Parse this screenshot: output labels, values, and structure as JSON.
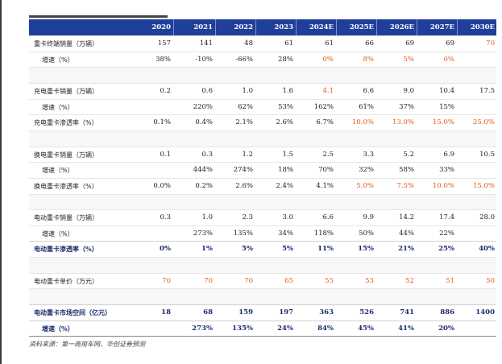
{
  "table": {
    "headers": [
      "",
      "2020",
      "2021",
      "2022",
      "2023",
      "2024E",
      "2025E",
      "2026E",
      "2027E",
      "2030E"
    ],
    "rows": [
      {
        "label": "重卡终端销量（万辆）",
        "values": [
          "157",
          "141",
          "48",
          "61",
          "61",
          "66",
          "69",
          "69",
          "70"
        ],
        "orange": [
          8
        ]
      },
      {
        "label": "增速（%）",
        "values": [
          "38%",
          "-10%",
          "-66%",
          "28%",
          "0%",
          "8%",
          "5%",
          "0%",
          ""
        ],
        "orange": [
          4,
          5,
          6,
          7
        ],
        "indent": true
      },
      {
        "blank": true
      },
      {
        "label": "充电重卡销量（万辆）",
        "values": [
          "0.2",
          "0.6",
          "1.0",
          "1.6",
          "4.1",
          "6.6",
          "9.0",
          "10.4",
          "17.5"
        ],
        "orange": [
          4
        ]
      },
      {
        "label": "增速（%）",
        "values": [
          "",
          "220%",
          "62%",
          "53%",
          "162%",
          "61%",
          "37%",
          "15%",
          ""
        ],
        "orange": [],
        "indent": true
      },
      {
        "label": "充电重卡渗透率（%）",
        "values": [
          "0.1%",
          "0.4%",
          "2.1%",
          "2.6%",
          "6.7%",
          "10.0%",
          "13.0%",
          "15.0%",
          "25.0%"
        ],
        "orange": [
          5,
          6,
          7,
          8
        ]
      },
      {
        "blank": true
      },
      {
        "label": "换电重卡销量（万辆）",
        "values": [
          "0.1",
          "0.3",
          "1.2",
          "1.5",
          "2.5",
          "3.3",
          "5.2",
          "6.9",
          "10.5"
        ],
        "orange": []
      },
      {
        "label": "增速（%）",
        "values": [
          "",
          "444%",
          "274%",
          "18%",
          "70%",
          "32%",
          "58%",
          "33%",
          ""
        ],
        "orange": [],
        "indent": true
      },
      {
        "label": "换电重卡渗透率（%）",
        "values": [
          "0.0%",
          "0.2%",
          "2.6%",
          "2.4%",
          "4.1%",
          "5.0%",
          "7.5%",
          "10.0%",
          "15.0%"
        ],
        "orange": [
          5,
          6,
          7,
          8
        ]
      },
      {
        "blank": true
      },
      {
        "label": "电动重卡销量（万辆）",
        "values": [
          "0.3",
          "1.0",
          "2.3",
          "3.0",
          "6.6",
          "9.9",
          "14.2",
          "17.4",
          "28.0"
        ],
        "orange": []
      },
      {
        "label": "增速（%）",
        "values": [
          "",
          "273%",
          "135%",
          "34%",
          "118%",
          "50%",
          "44%",
          "22%",
          ""
        ],
        "orange": [],
        "indent": true
      },
      {
        "label": "电动重卡渗透率（%）",
        "values": [
          "0%",
          "1%",
          "5%",
          "5%",
          "11%",
          "15%",
          "21%",
          "25%",
          "40%"
        ],
        "orange": [],
        "bold": true
      },
      {
        "blank": true
      },
      {
        "label": "电动重卡单价（万元）",
        "values": [
          "70",
          "70",
          "70",
          "65",
          "55",
          "53",
          "52",
          "51",
          "50"
        ],
        "orange": [
          0,
          1,
          2,
          3,
          4,
          5,
          6,
          7,
          8
        ]
      },
      {
        "blank": true
      },
      {
        "label": "电动重卡市场空间（亿元）",
        "values": [
          "18",
          "68",
          "159",
          "197",
          "363",
          "526",
          "741",
          "886",
          "1400"
        ],
        "orange": [],
        "bold": true
      },
      {
        "label": "增速（%）",
        "values": [
          "",
          "273%",
          "135%",
          "24%",
          "84%",
          "45%",
          "41%",
          "20%",
          ""
        ],
        "orange": [],
        "bold": true,
        "indent": true
      }
    ]
  },
  "source": "资料来源：第一商用车网、华创证券预测",
  "colors": {
    "header_bg": "#1f3f9a",
    "highlight": "#e05a1f",
    "bold_text": "#1b2a6b"
  }
}
